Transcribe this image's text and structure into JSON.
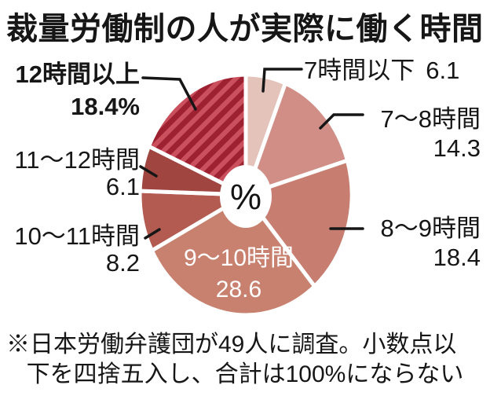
{
  "title": "裁量労働制の人が実際に働く時間",
  "center_label": "%",
  "footnote": {
    "line1": "※日本労働弁護団が49人に調査。小数点以",
    "line2": "下を四捨五入し、合計は100%にならない"
  },
  "chart_data": {
    "type": "pie",
    "title": "裁量労働制の人が実際に働く時間",
    "unit": "%",
    "direction": "clockwise",
    "start_angle_deg": 0,
    "center_label": "%",
    "footnote": "※日本労働弁護団が49人に調査。小数点以下を四捨五入し、合計は100%にならない",
    "segments": [
      {
        "label": "7時間以下",
        "value": 6.1,
        "display_value": "6.1",
        "color": "#e4c3bb",
        "hatched": false
      },
      {
        "label": "7〜8時間",
        "value": 14.3,
        "display_value": "14.3",
        "color": "#d08e86",
        "hatched": false
      },
      {
        "label": "8〜9時間",
        "value": 18.4,
        "display_value": "18.4",
        "color": "#c77e71",
        "hatched": false
      },
      {
        "label": "9〜10時間",
        "value": 28.6,
        "display_value": "28.6",
        "color": "#c8806f",
        "hatched": false
      },
      {
        "label": "10〜11時間",
        "value": 8.2,
        "display_value": "8.2",
        "color": "#b35a51",
        "hatched": false
      },
      {
        "label": "11〜12時間",
        "value": 6.1,
        "display_value": "6.1",
        "color": "#a04540",
        "hatched": false
      },
      {
        "label": "12時間以上",
        "value": 18.4,
        "display_value": "18.4%",
        "color": "#ca505d",
        "hatched": true,
        "hatch_color": "#9e2132"
      }
    ]
  }
}
